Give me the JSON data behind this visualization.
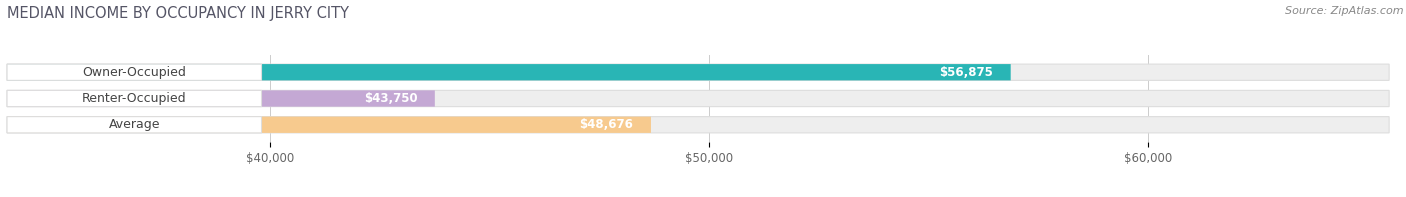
{
  "title": "MEDIAN INCOME BY OCCUPANCY IN JERRY CITY",
  "source": "Source: ZipAtlas.com",
  "categories": [
    "Owner-Occupied",
    "Renter-Occupied",
    "Average"
  ],
  "values": [
    56875,
    43750,
    48676
  ],
  "bar_colors": [
    "#29b5b5",
    "#c4a8d4",
    "#f7ca8e"
  ],
  "bar_labels": [
    "$56,875",
    "$43,750",
    "$48,676"
  ],
  "xlim_min": 34000,
  "xlim_max": 65500,
  "xticks": [
    40000,
    50000,
    60000
  ],
  "xtick_labels": [
    "$40,000",
    "$50,000",
    "$60,000"
  ],
  "background_color": "#ffffff",
  "bar_bg_color": "#eeeeee",
  "title_fontsize": 10.5,
  "source_fontsize": 8,
  "label_fontsize": 9,
  "value_fontsize": 8.5,
  "tick_fontsize": 8.5,
  "bar_height": 0.62,
  "bar_gap": 1.0,
  "rounding_size": 0.3
}
